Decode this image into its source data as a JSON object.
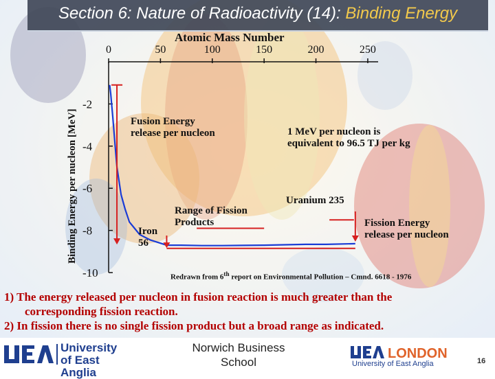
{
  "slide": {
    "title_main": "Section 6: Nature of Radioactivity (14):",
    "title_accent": "Binding Energy",
    "page_number": "16"
  },
  "chart_data": {
    "type": "line",
    "xlabel": "Atomic Mass Number",
    "ylabel": "Binding Energy per nucleon [MeV]",
    "x_ticks": [
      0,
      50,
      100,
      150,
      200,
      250
    ],
    "y_ticks": [
      -2,
      -4,
      -6,
      -8,
      -10
    ],
    "xlim": [
      0,
      260
    ],
    "ylim": [
      -10,
      0
    ],
    "x_axis_position": "top",
    "series": [
      {
        "x": [
          1,
          2,
          4,
          6,
          8,
          12,
          16,
          20,
          25,
          30,
          40,
          56,
          70,
          90,
          110,
          130,
          150,
          170,
          190,
          210,
          238
        ],
        "y": [
          -1.1,
          -1.5,
          -2.6,
          -3.8,
          -5.0,
          -6.3,
          -7.0,
          -7.6,
          -7.9,
          -8.2,
          -8.45,
          -8.7,
          -8.7,
          -8.72,
          -8.72,
          -8.71,
          -8.7,
          -8.68,
          -8.66,
          -8.66,
          -8.63
        ]
      }
    ],
    "annotations": {
      "fusion_label": "Fusion Energy release per nucleon",
      "equivalence_note": "1 MeV per nucleon is equivalent to 96.5 TJ per kg",
      "fission_range_label": "Range of Fission Products",
      "uranium_label": "Uranium 235",
      "iron_label": "Iron 56",
      "fission_energy_label": "Fission Energy release per nucleon",
      "source": "Redrawn from 6th report on Environmental Pollution – Cmnd. 6618 - 1976",
      "fission_range_x": [
        85,
        150
      ],
      "fission_range_y": -7.9
    },
    "colors": {
      "curve": "#1a3cd6",
      "markers": "#d62020",
      "axis": "#111111"
    }
  },
  "notes": {
    "item1_line1": "1)  The energy released per nucleon in fusion reaction is much greater than the",
    "item1_line2": "corresponding fission reaction.",
    "item2": "2)  In fission there is no single fission product but a broad range as  indicated."
  },
  "footer": {
    "logo_left": "University of East Anglia",
    "center_text": "Norwich Business School",
    "logo_right": "UEA LONDON University of East Anglia"
  }
}
